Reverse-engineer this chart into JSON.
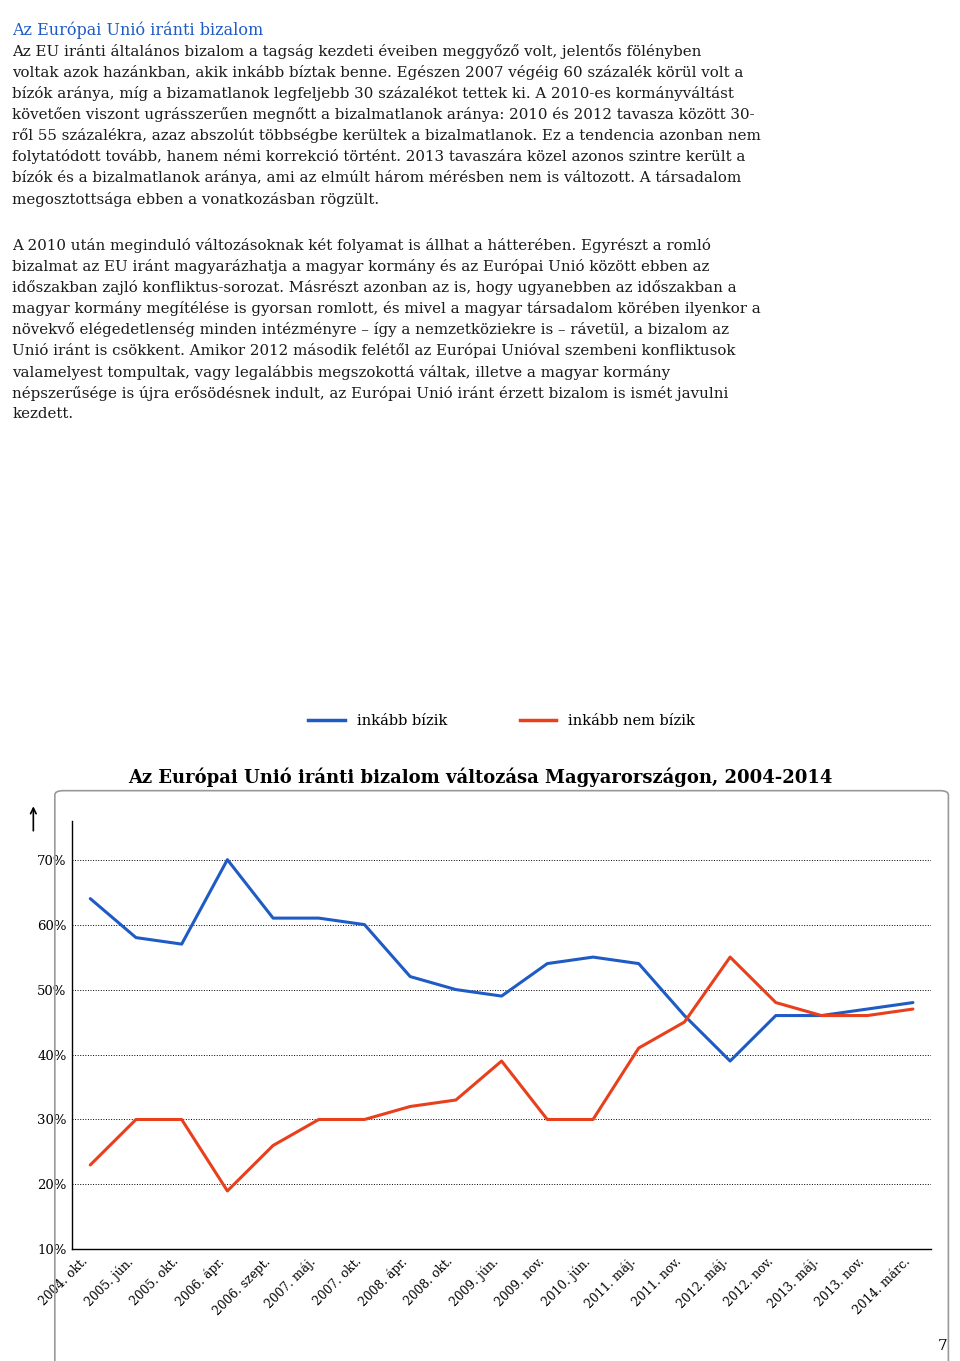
{
  "title": "Az Európai Unió iránti bizalom változása Magyarországon, 2004-2014",
  "title_fontsize": 13,
  "legend_labels": [
    "inkább bízik",
    "inkább nem bízik"
  ],
  "legend_colors": [
    "#1f5bc4",
    "#e8401c"
  ],
  "x_labels": [
    "2004. okt.",
    "2005. jún.",
    "2005. okt.",
    "2006. ápr.",
    "2006. szept.",
    "2007. máj.",
    "2007. okt.",
    "2008. ápr.",
    "2008. okt.",
    "2009. jún.",
    "2009. nov.",
    "2010. jún.",
    "2011. máj.",
    "2011. nov.",
    "2012. máj.",
    "2012. nov.",
    "2013. máj.",
    "2013. nov.",
    "2014. márc."
  ],
  "blue_values": [
    64,
    58,
    57,
    70,
    61,
    61,
    60,
    52,
    50,
    49,
    54,
    55,
    54,
    46,
    39,
    46,
    46,
    47,
    48
  ],
  "red_values": [
    23,
    30,
    30,
    19,
    26,
    30,
    30,
    32,
    33,
    39,
    30,
    30,
    41,
    45,
    55,
    48,
    46,
    46,
    47
  ],
  "blue_color": "#1f5bc4",
  "red_color": "#e8401c",
  "ylim_min": 10,
  "ylim_max": 76,
  "yticks": [
    10,
    20,
    30,
    40,
    50,
    60,
    70
  ],
  "ytick_labels": [
    "10%",
    "20%",
    "30%",
    "40%",
    "50%",
    "60%",
    "70%"
  ],
  "line_width": 2.2,
  "background_color": "#ffffff",
  "page_number": "7",
  "heading_text": "Az Európai Unió iránti bizalom",
  "heading_color": "#1f5bc4",
  "heading_fontsize": 11.5,
  "body_fontsize": 10.8,
  "body_color": "#1a1a1a",
  "para1_lines": [
    "Az EU iránti általános bizalom a tagság kezdeti éveiben meggyőző volt, jelentős fölényben",
    "voltak azok hazánkban, akik inkább bíztak benne. Egészen 2007 végéig 60 százalék körül volt a",
    "bízók aránya, míg a bizamatlanok legfeljebb 30 százalékot tettek ki. A 2010-es kormányváltást",
    "követően viszont ugrásszerűen megnőtt a bizalmatlanok aránya: 2010 és 2012 tavasza között 30-",
    "ről 55 százalékra, azaz abszolút többségbe kerültek a bizalmatlanok. Ez a tendencia azonban nem",
    "folytatódott tovább, hanem némi korrekció történt. 2013 tavaszára közel azonos szintre került a",
    "bízók és a bizalmatlanok aránya, ami az elmúlt három mérésben nem is változott. A társadalom",
    "megosztottsága ebben a vonatkozásban rögzült."
  ],
  "para2_lines": [
    "A 2010 után meginduló változásoknak két folyamat is állhat a hátterében. Egyrészt a romló",
    "bizalmat az EU iránt magyarázhatja a magyar kormány és az Európai Unió között ebben az",
    "időszakban zajló konfliktus-sorozat. Másrészt azonban az is, hogy ugyanebben az időszakban a",
    "magyar kormány megítélése is gyorsan romlott, és mivel a magyar társadalom körében ilyenkor a",
    "növekvő elégedetlenség minden intézményre – így a nemzetköziekre is – rávetül, a bizalom az",
    "Unió iránt is csökkent. Amikor 2012 második felétől az Európai Unióval szembeni konfliktusok",
    "valamelyest tompultak, vagy legalábbis megszokottá váltak, illetve a magyar kormány",
    "népszerűsége is újra erősödésnek indult, az Európai Unió iránt érzett bizalom is ismét javulni",
    "kezdett."
  ]
}
